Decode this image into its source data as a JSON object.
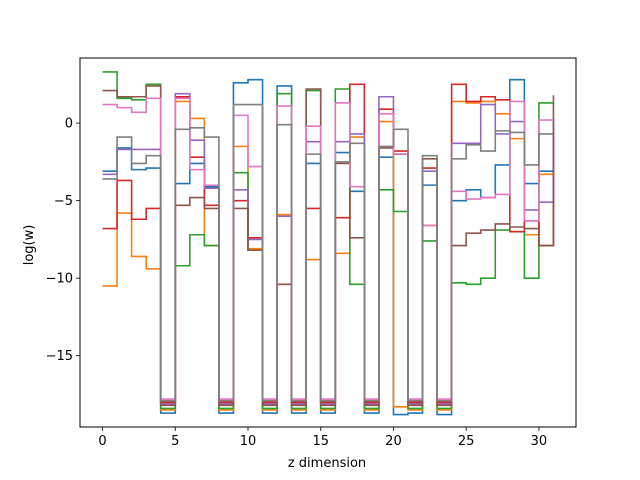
{
  "chart_data": {
    "type": "line",
    "step": "post",
    "title": "",
    "xlabel": "z dimension",
    "ylabel": "log(w)",
    "xlim": [
      -1.55,
      32.55
    ],
    "ylim": [
      -19.6,
      4.2
    ],
    "xticks": [
      0,
      5,
      10,
      15,
      20,
      25,
      30
    ],
    "yticks": [
      -15,
      -10,
      -5,
      0
    ],
    "grid": false,
    "legend": "none",
    "x": [
      0,
      1,
      2,
      3,
      4,
      5,
      6,
      7,
      8,
      9,
      10,
      11,
      12,
      13,
      14,
      15,
      16,
      17,
      18,
      19,
      20,
      21,
      22,
      23,
      24,
      25,
      26,
      27,
      28,
      29,
      30,
      31
    ],
    "series": [
      {
        "color": "#1f77b4",
        "values": [
          -3.1,
          -1.6,
          -3.0,
          -2.9,
          -18.7,
          -3.9,
          -2.6,
          -4.1,
          -18.7,
          2.6,
          2.8,
          -18.7,
          2.4,
          -18.7,
          -2.6,
          -18.7,
          -1.9,
          -4.4,
          -18.7,
          -2.2,
          -18.8,
          -18.7,
          -4.0,
          -18.8,
          -5.0,
          -4.3,
          -4.8,
          -2.7,
          2.8,
          -3.9,
          -3.1,
          -3.1
        ]
      },
      {
        "color": "#ff7f0e",
        "values": [
          -10.5,
          -5.8,
          -8.6,
          -9.4,
          -18.5,
          1.4,
          0.3,
          -7.9,
          -18.5,
          -1.5,
          -8.1,
          -18.5,
          -5.9,
          -18.5,
          -8.8,
          -18.5,
          -8.4,
          -0.9,
          -18.5,
          0.1,
          -18.3,
          -18.5,
          -6.6,
          -18.5,
          1.4,
          1.3,
          1.4,
          0.6,
          -1.0,
          -7.2,
          -3.3,
          -3.3
        ]
      },
      {
        "color": "#2ca02c",
        "values": [
          3.3,
          1.6,
          1.5,
          2.5,
          -18.4,
          -9.2,
          -7.2,
          -7.9,
          -18.4,
          -3.2,
          -8.2,
          -18.4,
          1.9,
          -18.4,
          2.1,
          -18.4,
          2.2,
          -10.4,
          -18.4,
          -4.3,
          -5.7,
          -18.4,
          -7.6,
          -18.4,
          -10.3,
          -10.4,
          -10.0,
          -6.9,
          -7.0,
          -10.0,
          1.3,
          1.3
        ]
      },
      {
        "color": "#d62728",
        "values": [
          -6.8,
          -3.7,
          -6.2,
          -5.5,
          -18.0,
          1.7,
          -2.2,
          -5.3,
          -18.0,
          -5.0,
          -7.4,
          -18.0,
          -10.4,
          -18.0,
          -5.5,
          -18.0,
          -6.1,
          2.5,
          -18.0,
          0.9,
          -1.8,
          -18.0,
          -2.9,
          -18.0,
          2.5,
          1.4,
          1.7,
          1.5,
          -7.0,
          -6.3,
          -7.9,
          -0.6
        ]
      },
      {
        "color": "#9467bd",
        "values": [
          -3.3,
          -1.7,
          -1.7,
          -1.7,
          -18.1,
          1.9,
          -1.1,
          -4.2,
          -18.1,
          -4.3,
          -7.5,
          -18.1,
          -6.0,
          -18.1,
          -1.2,
          -18.1,
          -1.2,
          -0.7,
          -18.1,
          1.7,
          -2.0,
          -18.1,
          -3.1,
          -18.1,
          -1.3,
          -1.3,
          1.2,
          -0.7,
          0.1,
          -5.6,
          -5.1,
          0.3
        ]
      },
      {
        "color": "#8c564b",
        "values": [
          2.1,
          1.7,
          1.7,
          2.4,
          -18.2,
          -5.3,
          -4.8,
          -5.5,
          -18.2,
          -5.5,
          -8.2,
          -18.2,
          -10.4,
          -18.2,
          2.2,
          -18.2,
          -2.6,
          -7.4,
          -18.2,
          -1.6,
          -2.0,
          -18.2,
          -2.3,
          -18.2,
          -7.9,
          -7.1,
          -6.9,
          -6.5,
          -6.7,
          -6.8,
          -7.9,
          1.8
        ]
      },
      {
        "color": "#e377c2",
        "values": [
          1.2,
          1.0,
          0.7,
          1.6,
          -17.8,
          1.6,
          -3.0,
          -4.0,
          -17.8,
          0.5,
          -2.8,
          -17.8,
          1.1,
          -17.8,
          -0.2,
          -17.8,
          1.3,
          -4.1,
          -17.8,
          0.6,
          -2.0,
          -17.8,
          -6.6,
          -17.8,
          -4.4,
          -4.9,
          -4.8,
          -4.6,
          1.4,
          -6.3,
          0.2,
          0.2
        ]
      },
      {
        "color": "#7f7f7f",
        "values": [
          -3.6,
          -0.9,
          -2.6,
          -2.1,
          -17.9,
          -0.4,
          -0.3,
          -0.9,
          -17.9,
          1.2,
          1.2,
          -17.9,
          -0.1,
          -17.9,
          -2.0,
          -17.9,
          -2.5,
          -1.3,
          -17.9,
          -1.5,
          -0.4,
          -17.9,
          -2.1,
          -17.9,
          -2.3,
          -1.4,
          -1.8,
          -0.5,
          -0.6,
          -2.7,
          -0.7,
          -0.7
        ]
      }
    ]
  }
}
